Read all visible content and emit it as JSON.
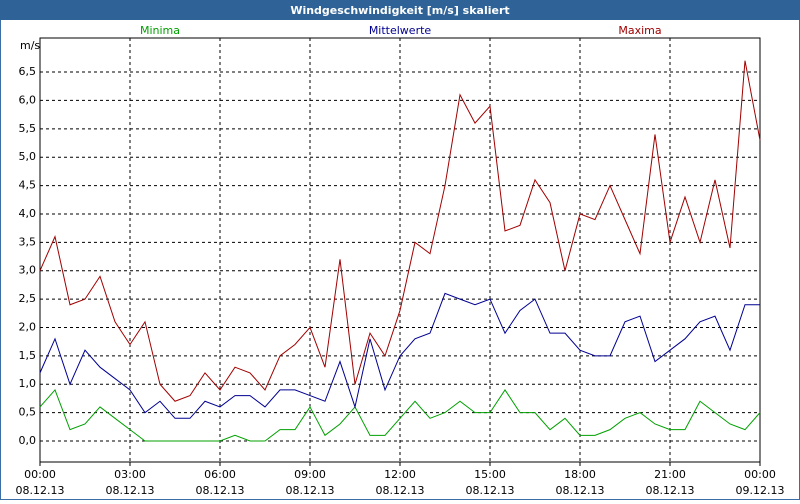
{
  "chart_data": {
    "type": "line",
    "title": "Windgeschwindigkeit [m/s] skaliert",
    "y_label": "m/s",
    "x": [
      0,
      0.5,
      1,
      1.5,
      2,
      2.5,
      3,
      3.5,
      4,
      4.5,
      5,
      5.5,
      6,
      6.5,
      7,
      7.5,
      8,
      8.5,
      9,
      9.5,
      10,
      10.5,
      11,
      11.5,
      12,
      12.5,
      13,
      13.5,
      14,
      14.5,
      15,
      15.5,
      16,
      16.5,
      17,
      17.5,
      18,
      18.5,
      19,
      19.5,
      20,
      20.5,
      21,
      21.5,
      22,
      22.5,
      23,
      23.5,
      24
    ],
    "series": [
      {
        "name": "Minima",
        "color": "#00a000",
        "values": [
          0.6,
          0.9,
          0.2,
          0.3,
          0.6,
          0.4,
          0.2,
          0.0,
          0.0,
          0.0,
          0.0,
          0.0,
          0.0,
          0.1,
          0.0,
          0.0,
          0.2,
          0.2,
          0.6,
          0.1,
          0.3,
          0.6,
          0.1,
          0.1,
          0.4,
          0.7,
          0.4,
          0.5,
          0.7,
          0.5,
          0.5,
          0.9,
          0.5,
          0.5,
          0.2,
          0.4,
          0.1,
          0.1,
          0.2,
          0.4,
          0.5,
          0.3,
          0.2,
          0.2,
          0.7,
          0.5,
          0.3,
          0.2,
          0.5
        ]
      },
      {
        "name": "Mittelwerte",
        "color": "#000090",
        "values": [
          1.2,
          1.8,
          1.0,
          1.6,
          1.3,
          1.1,
          0.9,
          0.5,
          0.7,
          0.4,
          0.4,
          0.7,
          0.6,
          0.8,
          0.8,
          0.6,
          0.9,
          0.9,
          0.8,
          0.7,
          1.4,
          0.6,
          1.8,
          0.9,
          1.5,
          1.8,
          1.9,
          2.6,
          2.5,
          2.4,
          2.5,
          1.9,
          2.3,
          2.5,
          1.9,
          1.9,
          1.6,
          1.5,
          1.5,
          2.1,
          2.2,
          1.4,
          1.6,
          1.8,
          2.1,
          2.2,
          1.6,
          2.4,
          2.4
        ]
      },
      {
        "name": "Maxima",
        "color": "#a00000",
        "values": [
          3.0,
          3.6,
          2.4,
          2.5,
          2.9,
          2.1,
          1.7,
          2.1,
          1.0,
          0.7,
          0.8,
          1.2,
          0.9,
          1.3,
          1.2,
          0.9,
          1.5,
          1.7,
          2.0,
          1.3,
          3.2,
          1.0,
          1.9,
          1.5,
          2.3,
          3.5,
          3.3,
          4.5,
          6.1,
          5.6,
          5.9,
          3.7,
          3.8,
          4.6,
          4.2,
          3.0,
          4.0,
          3.9,
          4.5,
          3.9,
          3.3,
          5.4,
          3.5,
          4.3,
          3.5,
          4.6,
          3.4,
          6.7,
          5.3
        ]
      }
    ],
    "xlim": [
      0,
      24
    ],
    "xticks": [
      {
        "value": 0,
        "label": "00:00"
      },
      {
        "value": 3,
        "label": "03:00"
      },
      {
        "value": 6,
        "label": "06:00"
      },
      {
        "value": 9,
        "label": "09:00"
      },
      {
        "value": 12,
        "label": "12:00"
      },
      {
        "value": 15,
        "label": "15:00"
      },
      {
        "value": 18,
        "label": "18:00"
      },
      {
        "value": 21,
        "label": "21:00"
      },
      {
        "value": 24,
        "label": "00:00"
      }
    ],
    "xtick_dates": [
      "08.12.13",
      "08.12.13",
      "08.12.13",
      "08.12.13",
      "08.12.13",
      "08.12.13",
      "08.12.13",
      "08.12.13",
      "09.12.13"
    ],
    "ylim": [
      -0.37,
      7.1
    ],
    "yticks": [
      {
        "value": 0,
        "label": "0,0"
      },
      {
        "value": 0.5,
        "label": "0,5"
      },
      {
        "value": 1,
        "label": "1,0"
      },
      {
        "value": 1.5,
        "label": "1,5"
      },
      {
        "value": 2,
        "label": "2,0"
      },
      {
        "value": 2.5,
        "label": "2,5"
      },
      {
        "value": 3,
        "label": "3,0"
      },
      {
        "value": 3.5,
        "label": "3,5"
      },
      {
        "value": 4,
        "label": "4,0"
      },
      {
        "value": 4.5,
        "label": "4,5"
      },
      {
        "value": 5,
        "label": "5,0"
      },
      {
        "value": 5.5,
        "label": "5,5"
      },
      {
        "value": 6,
        "label": "6,0"
      },
      {
        "value": 6.5,
        "label": "6,5"
      }
    ],
    "grid": true
  }
}
